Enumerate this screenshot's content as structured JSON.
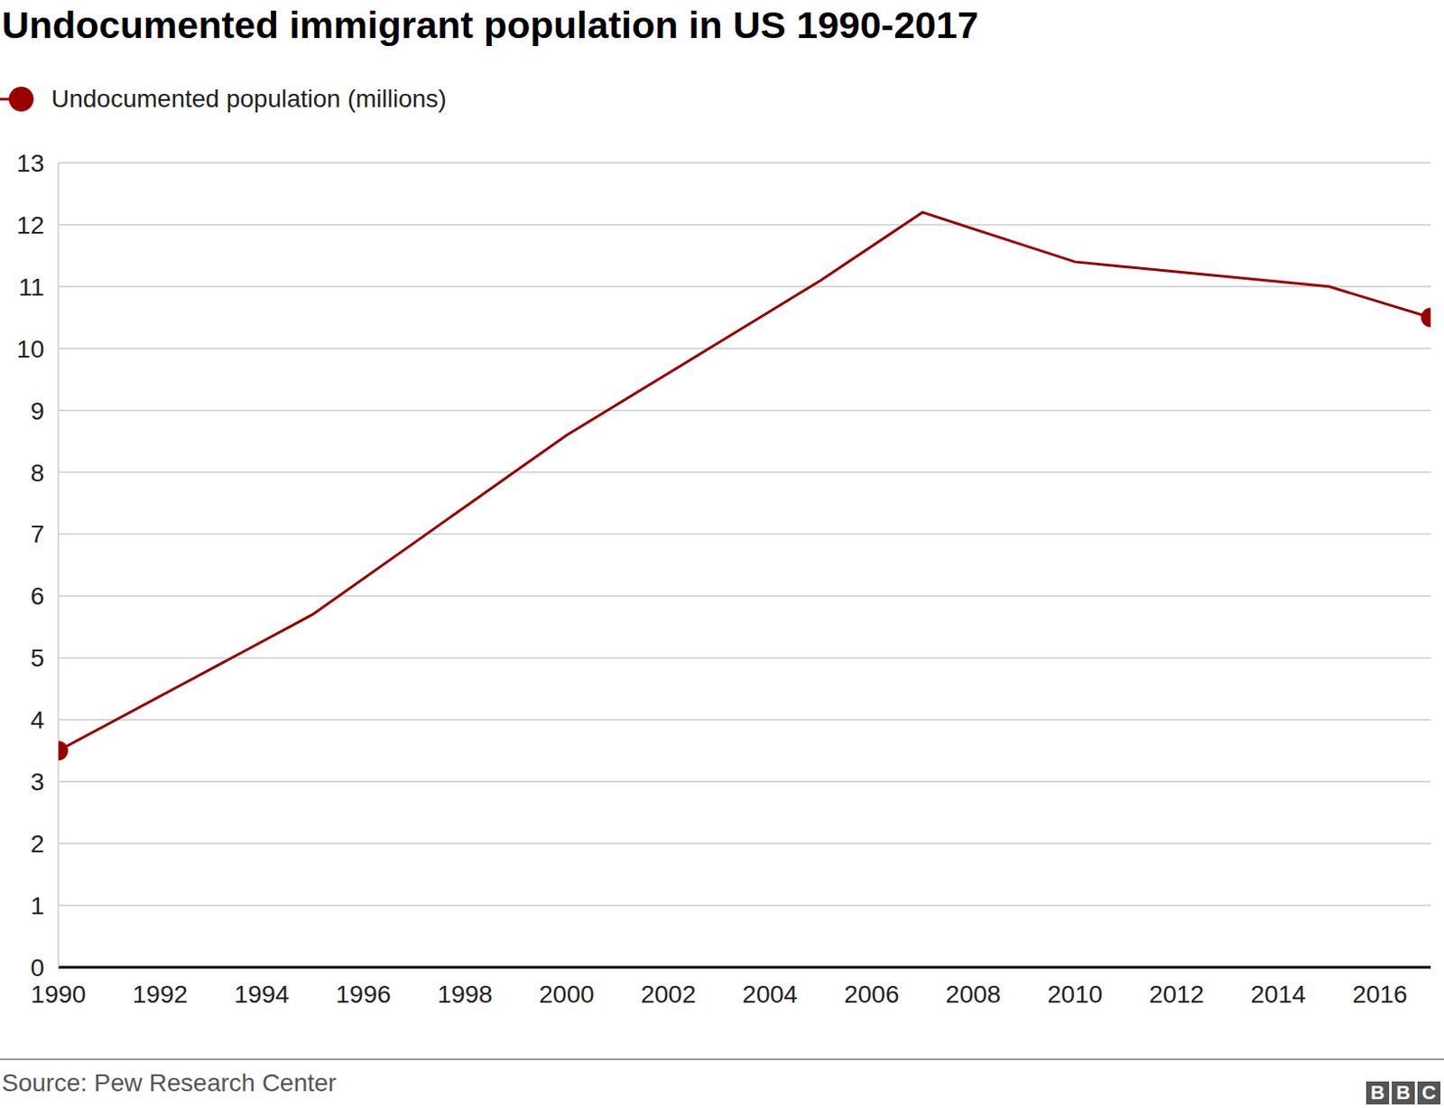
{
  "chart_data": {
    "type": "line",
    "title": "Undocumented immigrant population in US 1990-2017",
    "source": "Source: Pew Research Center",
    "logo": "BBC",
    "x": [
      1990,
      1995,
      2000,
      2005,
      2007,
      2010,
      2015,
      2017
    ],
    "series": [
      {
        "name": "Undocumented population (millions)",
        "color": "#990000",
        "values": [
          3.5,
          5.7,
          8.6,
          11.1,
          12.2,
          11.4,
          11.0,
          10.5
        ],
        "marker": "endpoints"
      }
    ],
    "xlim": [
      1990,
      2017
    ],
    "xticks": [
      1990,
      1992,
      1994,
      1996,
      1998,
      2000,
      2002,
      2004,
      2006,
      2008,
      2010,
      2012,
      2014,
      2016
    ],
    "ylim": [
      0,
      13
    ],
    "yticks": [
      0,
      1,
      2,
      3,
      4,
      5,
      6,
      7,
      8,
      9,
      10,
      11,
      12,
      13
    ],
    "grid": true,
    "legend": "top-left"
  }
}
